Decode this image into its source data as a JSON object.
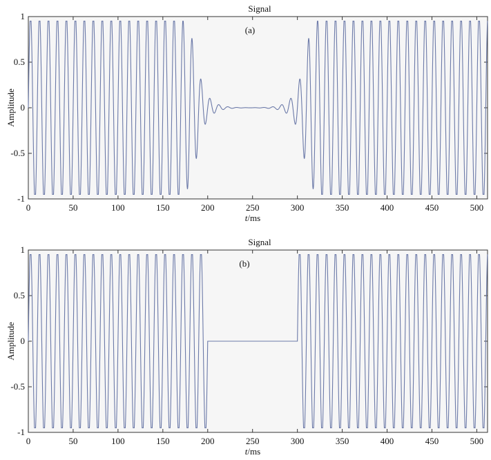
{
  "chart_data": [
    {
      "type": "line",
      "title": "Signal",
      "annotation": "(a)",
      "xlabel_italic": "t",
      "xlabel_unit": "/ms",
      "ylabel": "Amplitude",
      "xlim": [
        0,
        512
      ],
      "ylim": [
        -1,
        1
      ],
      "x_ticks": [
        0,
        50,
        100,
        150,
        200,
        250,
        300,
        350,
        400,
        450,
        500
      ],
      "y_ticks": [
        1,
        0.5,
        0,
        -0.5,
        -1
      ],
      "y_tick_labels": [
        "1",
        "0.5",
        "0",
        "-0.5",
        "-1"
      ],
      "series": [
        {
          "color": "#6b79a8",
          "frequency_cycles_per_ms": 0.1,
          "amplitude": 0.95,
          "envelope": "smooth-taper",
          "gap_start": 190,
          "gap_end": 305,
          "gap_center": 257,
          "taper_width": 40
        }
      ]
    },
    {
      "type": "line",
      "title": "Signal",
      "annotation": "(b)",
      "xlabel_italic": "t",
      "xlabel_unit": "/ms",
      "ylabel": "Amplitude",
      "xlim": [
        0,
        512
      ],
      "ylim": [
        -1,
        1
      ],
      "x_ticks": [
        0,
        50,
        100,
        150,
        200,
        250,
        300,
        350,
        400,
        450,
        500
      ],
      "y_ticks": [
        1,
        0.5,
        0,
        -0.5,
        -1
      ],
      "y_tick_labels": [
        "1",
        "0.5",
        "0",
        "-0.5",
        "-1"
      ],
      "series": [
        {
          "color": "#6b79a8",
          "frequency_cycles_per_ms": 0.1,
          "amplitude": 0.95,
          "envelope": "rectangular",
          "gap_start": 200,
          "gap_end": 300
        }
      ]
    }
  ]
}
